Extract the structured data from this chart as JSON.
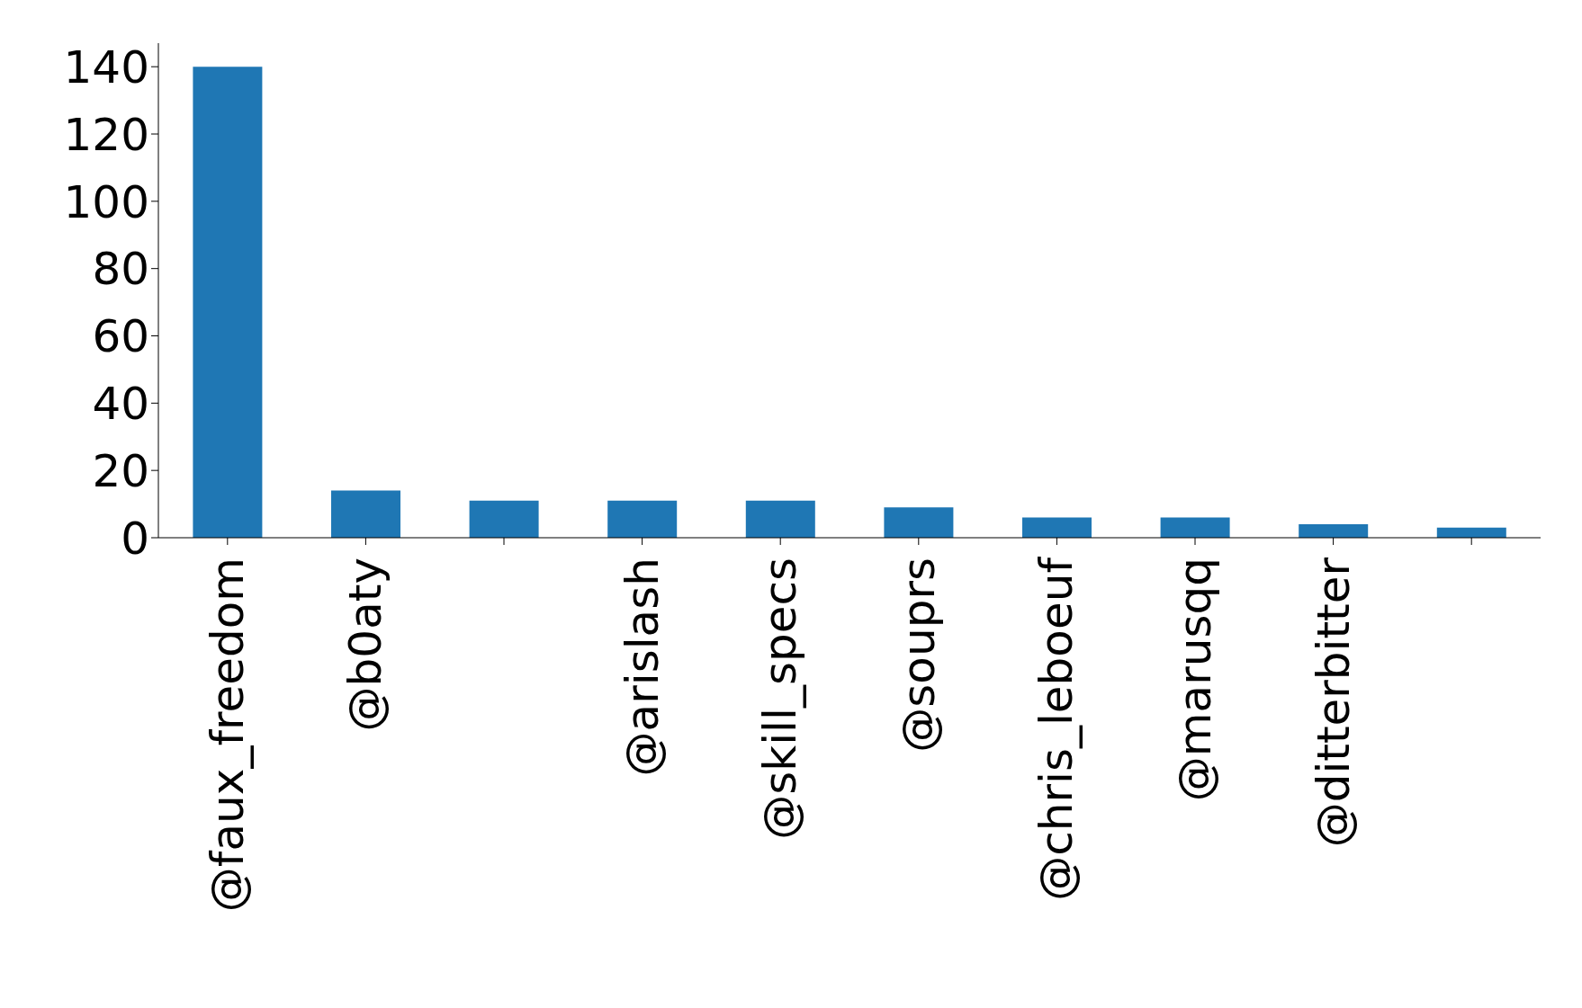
{
  "chart_data": {
    "type": "bar",
    "categories": [
      "@faux_freedom",
      "@b0aty",
      null,
      "@arislash",
      "@skill_specs",
      "@souprs",
      "@chris_leboeuf",
      "@marusqq",
      "@ditterbitter",
      null
    ],
    "values": [
      140,
      14,
      11,
      11,
      11,
      9,
      6,
      6,
      4,
      3
    ],
    "color": "#1f77b4",
    "ylim": [
      0,
      147
    ],
    "yticks": [
      0,
      20,
      40,
      60,
      80,
      100,
      120,
      140
    ],
    "grid": false,
    "legend": false
  }
}
